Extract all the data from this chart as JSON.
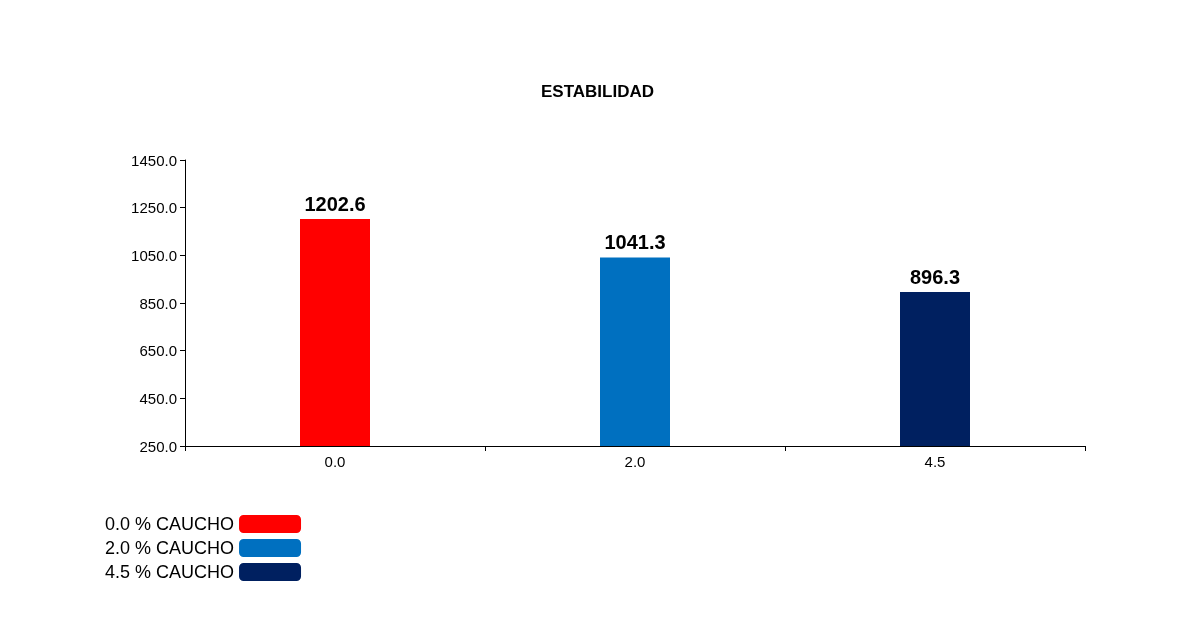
{
  "chart_data": {
    "type": "bar",
    "title": "ESTABILIDAD",
    "categories": [
      "0.0",
      "2.0",
      "4.5"
    ],
    "series": [
      {
        "name": "0.0 % CAUCHO",
        "color": "#ff0000",
        "values": [
          1202.6,
          null,
          null
        ]
      },
      {
        "name": "2.0 % CAUCHO",
        "color": "#0070c0",
        "values": [
          null,
          1041.3,
          null
        ]
      },
      {
        "name": "4.5 % CAUCHO",
        "color": "#002060",
        "values": [
          null,
          null,
          896.3
        ]
      }
    ],
    "ylim": [
      250,
      1450
    ],
    "yticks": [
      {
        "value": 250,
        "label": "250.0"
      },
      {
        "value": 450,
        "label": "450.0"
      },
      {
        "value": 650,
        "label": "650.0"
      },
      {
        "value": 850,
        "label": "850.0"
      },
      {
        "value": 1050,
        "label": "1050.0"
      },
      {
        "value": 1250,
        "label": "1250.0"
      },
      {
        "value": 1450,
        "label": "1450.0"
      }
    ],
    "data_labels": true,
    "grid": false,
    "legend": "bottom left"
  }
}
